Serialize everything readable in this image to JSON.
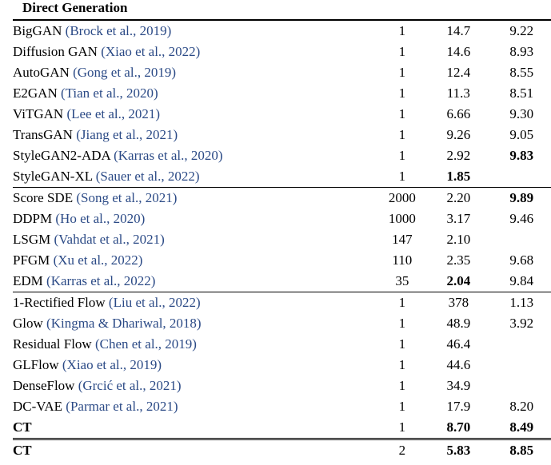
{
  "section_title": "Direct Generation",
  "groups": [
    {
      "rows": [
        {
          "name": "BigGAN",
          "cite": "(Brock et al., 2019)",
          "nfe": "1",
          "fid": "14.7",
          "is": "9.22"
        },
        {
          "name": "Diffusion GAN",
          "cite": "(Xiao et al., 2022)",
          "nfe": "1",
          "fid": "14.6",
          "is": "8.93"
        },
        {
          "name": "AutoGAN",
          "cite": "(Gong et al., 2019)",
          "nfe": "1",
          "fid": "12.4",
          "is": "8.55"
        },
        {
          "name": "E2GAN",
          "cite": "(Tian et al., 2020)",
          "nfe": "1",
          "fid": "11.3",
          "is": "8.51"
        },
        {
          "name": "ViTGAN",
          "cite": "(Lee et al., 2021)",
          "nfe": "1",
          "fid": "6.66",
          "is": "9.30"
        },
        {
          "name": "TransGAN",
          "cite": "(Jiang et al., 2021)",
          "nfe": "1",
          "fid": "9.26",
          "is": "9.05"
        },
        {
          "name": "StyleGAN2-ADA",
          "cite": "(Karras et al., 2020)",
          "nfe": "1",
          "fid": "2.92",
          "is": "9.83"
        },
        {
          "name": "StyleGAN-XL",
          "cite": "(Sauer et al., 2022)",
          "nfe": "1",
          "fid": "1.85",
          "is": ""
        }
      ]
    },
    {
      "rows": [
        {
          "name": "Score SDE",
          "cite": "(Song et al., 2021)",
          "nfe": "2000",
          "fid": "2.20",
          "is": "9.89"
        },
        {
          "name": "DDPM",
          "cite": "(Ho et al., 2020)",
          "nfe": "1000",
          "fid": "3.17",
          "is": "9.46"
        },
        {
          "name": "LSGM",
          "cite": "(Vahdat et al., 2021)",
          "nfe": "147",
          "fid": "2.10",
          "is": ""
        },
        {
          "name": "PFGM",
          "cite": "(Xu et al., 2022)",
          "nfe": "110",
          "fid": "2.35",
          "is": "9.68"
        },
        {
          "name": "EDM",
          "cite": "(Karras et al., 2022)",
          "nfe": "35",
          "fid": "2.04",
          "is": "9.84"
        }
      ]
    },
    {
      "rows": [
        {
          "name": "1-Rectified Flow",
          "cite": "(Liu et al., 2022)",
          "nfe": "1",
          "fid": "378",
          "is": "1.13"
        },
        {
          "name": "Glow",
          "cite": "(Kingma & Dhariwal, 2018)",
          "nfe": "1",
          "fid": "48.9",
          "is": "3.92"
        },
        {
          "name": "Residual Flow",
          "cite": "(Chen et al., 2019)",
          "nfe": "1",
          "fid": "46.4",
          "is": ""
        },
        {
          "name": "GLFlow",
          "cite": "(Xiao et al., 2019)",
          "nfe": "1",
          "fid": "44.6",
          "is": ""
        },
        {
          "name": "DenseFlow",
          "cite": "(Grcić et al., 2021)",
          "nfe": "1",
          "fid": "34.9",
          "is": ""
        },
        {
          "name": "DC-VAE",
          "cite": "(Parmar et al., 2021)",
          "nfe": "1",
          "fid": "17.9",
          "is": "8.20"
        },
        {
          "name": "CT",
          "cite": "",
          "nfe": "1",
          "fid": "8.70",
          "is": "8.49"
        }
      ]
    },
    {
      "rows": [
        {
          "name": "CT",
          "cite": "",
          "nfe": "2",
          "fid": "5.83",
          "is": "8.85"
        }
      ]
    }
  ]
}
